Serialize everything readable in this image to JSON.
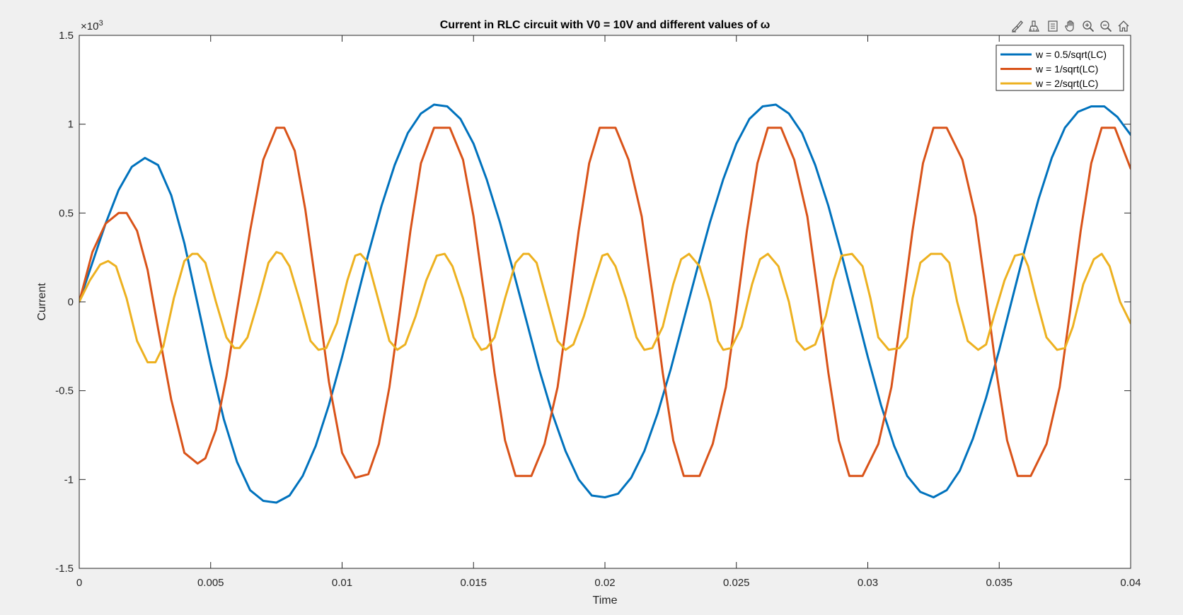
{
  "toolbar": {
    "icons": [
      "brush-icon",
      "data-tips-icon",
      "export-icon",
      "pan-hand-icon",
      "zoom-in-icon",
      "zoom-out-icon",
      "home-icon"
    ]
  },
  "colors": {
    "series1": "#0072BD",
    "series2": "#D95319",
    "series3": "#EDB120",
    "axes": "#262626",
    "plot_background": "#ffffff",
    "figure_background": "#f0f0f0"
  },
  "chart_data": {
    "type": "line",
    "title": "Current in RLC circuit with V0 = 10V and different values of ω",
    "xlabel": "Time",
    "ylabel": "Current",
    "y_exponent": "×10",
    "y_exponent_power": "-3",
    "xlim": [
      0,
      0.04
    ],
    "ylim": [
      -1.5,
      1.5
    ],
    "xticks": [
      0,
      0.005,
      0.01,
      0.015,
      0.02,
      0.025,
      0.03,
      0.035,
      0.04
    ],
    "xtick_labels": [
      "0",
      "0.005",
      "0.01",
      "0.015",
      "0.02",
      "0.025",
      "0.03",
      "0.035",
      "0.04"
    ],
    "yticks": [
      -1.5,
      -1,
      -0.5,
      0,
      0.5,
      1,
      1.5
    ],
    "ytick_labels": [
      "-1.5",
      "-1",
      "-0.5",
      "0",
      "0.5",
      "1",
      "1.5"
    ],
    "grid": false,
    "legend_position": "top-right",
    "series": [
      {
        "name": "w = 0.5/sqrt(LC)",
        "x": [
          0,
          0.0005,
          0.001,
          0.0015,
          0.002,
          0.0025,
          0.003,
          0.0035,
          0.004,
          0.0045,
          0.005,
          0.0055,
          0.006,
          0.0065,
          0.007,
          0.0075,
          0.008,
          0.0085,
          0.009,
          0.0095,
          0.01,
          0.0105,
          0.011,
          0.0115,
          0.012,
          0.0125,
          0.013,
          0.0135,
          0.014,
          0.0145,
          0.015,
          0.0155,
          0.016,
          0.0165,
          0.017,
          0.0175,
          0.018,
          0.0185,
          0.019,
          0.0195,
          0.02,
          0.0205,
          0.021,
          0.0215,
          0.022,
          0.0225,
          0.023,
          0.0235,
          0.024,
          0.0245,
          0.025,
          0.0255,
          0.026,
          0.0265,
          0.027,
          0.0275,
          0.028,
          0.0285,
          0.029,
          0.0295,
          0.03,
          0.0305,
          0.031,
          0.0315,
          0.032,
          0.0325,
          0.033,
          0.0335,
          0.034,
          0.0345,
          0.035,
          0.0355,
          0.036,
          0.0365,
          0.037,
          0.0375,
          0.038,
          0.0385,
          0.039,
          0.0395,
          0.04
        ],
        "y": [
          0,
          0.22,
          0.44,
          0.63,
          0.76,
          0.81,
          0.77,
          0.6,
          0.33,
          -0.01,
          -0.35,
          -0.66,
          -0.9,
          -1.06,
          -1.12,
          -1.13,
          -1.09,
          -0.98,
          -0.81,
          -0.58,
          -0.31,
          -0.02,
          0.27,
          0.54,
          0.77,
          0.95,
          1.06,
          1.11,
          1.1,
          1.03,
          0.89,
          0.69,
          0.45,
          0.18,
          -0.1,
          -0.38,
          -0.63,
          -0.84,
          -1.0,
          -1.09,
          -1.1,
          -1.08,
          -0.99,
          -0.84,
          -0.63,
          -0.38,
          -0.1,
          0.18,
          0.45,
          0.69,
          0.89,
          1.03,
          1.1,
          1.11,
          1.06,
          0.95,
          0.77,
          0.54,
          0.27,
          -0.02,
          -0.31,
          -0.58,
          -0.81,
          -0.98,
          -1.07,
          -1.1,
          -1.06,
          -0.95,
          -0.77,
          -0.54,
          -0.27,
          0.02,
          0.31,
          0.58,
          0.81,
          0.98,
          1.07,
          1.1,
          1.1,
          1.04,
          0.94
        ]
      },
      {
        "name": "w = 1/sqrt(LC)",
        "x": [
          0,
          0.0005,
          0.001,
          0.0015,
          0.0018,
          0.0022,
          0.0026,
          0.003,
          0.0035,
          0.004,
          0.0045,
          0.0048,
          0.0052,
          0.0056,
          0.006,
          0.0065,
          0.007,
          0.0075,
          0.0078,
          0.0082,
          0.0086,
          0.009,
          0.0095,
          0.01,
          0.0105,
          0.011,
          0.0114,
          0.0118,
          0.0122,
          0.0126,
          0.013,
          0.0135,
          0.0141,
          0.0146,
          0.015,
          0.0154,
          0.0158,
          0.0162,
          0.0166,
          0.0172,
          0.0177,
          0.0182,
          0.0186,
          0.019,
          0.0194,
          0.0198,
          0.0204,
          0.0209,
          0.0214,
          0.0218,
          0.0222,
          0.0226,
          0.023,
          0.0236,
          0.0241,
          0.0246,
          0.025,
          0.0254,
          0.0258,
          0.0262,
          0.0267,
          0.0272,
          0.0277,
          0.0281,
          0.0285,
          0.0289,
          0.0293,
          0.0298,
          0.0304,
          0.0309,
          0.0313,
          0.0317,
          0.0321,
          0.0325,
          0.033,
          0.0336,
          0.0341,
          0.0345,
          0.0349,
          0.0353,
          0.0357,
          0.0362,
          0.0368,
          0.0373,
          0.0377,
          0.0381,
          0.0385,
          0.0389,
          0.0394,
          0.04
        ],
        "y": [
          0,
          0.28,
          0.44,
          0.5,
          0.5,
          0.4,
          0.18,
          -0.15,
          -0.55,
          -0.85,
          -0.91,
          -0.88,
          -0.72,
          -0.42,
          -0.05,
          0.4,
          0.8,
          0.98,
          0.98,
          0.85,
          0.52,
          0.1,
          -0.45,
          -0.85,
          -0.99,
          -0.97,
          -0.8,
          -0.48,
          -0.05,
          0.4,
          0.78,
          0.98,
          0.98,
          0.8,
          0.48,
          0.05,
          -0.4,
          -0.78,
          -0.98,
          -0.98,
          -0.8,
          -0.48,
          -0.05,
          0.4,
          0.78,
          0.98,
          0.98,
          0.8,
          0.48,
          0.05,
          -0.4,
          -0.78,
          -0.98,
          -0.98,
          -0.8,
          -0.48,
          -0.05,
          0.4,
          0.78,
          0.98,
          0.98,
          0.8,
          0.48,
          0.05,
          -0.4,
          -0.78,
          -0.98,
          -0.98,
          -0.8,
          -0.48,
          -0.05,
          0.4,
          0.78,
          0.98,
          0.98,
          0.8,
          0.48,
          0.05,
          -0.4,
          -0.78,
          -0.98,
          -0.98,
          -0.8,
          -0.48,
          -0.05,
          0.4,
          0.78,
          0.98,
          0.98,
          0.75
        ]
      },
      {
        "name": "w = 2/sqrt(LC)",
        "x": [
          0,
          0.0004,
          0.0008,
          0.0011,
          0.0014,
          0.0018,
          0.0022,
          0.0026,
          0.0029,
          0.0032,
          0.0036,
          0.004,
          0.0043,
          0.0045,
          0.0048,
          0.0052,
          0.0056,
          0.0059,
          0.0061,
          0.0064,
          0.0068,
          0.0072,
          0.0075,
          0.0077,
          0.008,
          0.0084,
          0.0088,
          0.0091,
          0.0094,
          0.0098,
          0.0102,
          0.0105,
          0.0107,
          0.011,
          0.0114,
          0.0118,
          0.0121,
          0.0124,
          0.0128,
          0.0132,
          0.0136,
          0.0139,
          0.0142,
          0.0146,
          0.015,
          0.0153,
          0.0155,
          0.0158,
          0.0162,
          0.0166,
          0.0169,
          0.0171,
          0.0174,
          0.0178,
          0.0182,
          0.0185,
          0.0188,
          0.0192,
          0.0196,
          0.0199,
          0.0201,
          0.0204,
          0.0208,
          0.0212,
          0.0215,
          0.0218,
          0.0222,
          0.0226,
          0.0229,
          0.0232,
          0.0236,
          0.024,
          0.0243,
          0.0245,
          0.0248,
          0.0252,
          0.0256,
          0.0259,
          0.0262,
          0.0266,
          0.027,
          0.0273,
          0.0276,
          0.028,
          0.0284,
          0.0287,
          0.029,
          0.0294,
          0.0298,
          0.0301,
          0.0304,
          0.0308,
          0.0312,
          0.0315,
          0.0317,
          0.032,
          0.0324,
          0.0328,
          0.0331,
          0.0334,
          0.0338,
          0.0342,
          0.0345,
          0.0348,
          0.0352,
          0.0356,
          0.0359,
          0.0361,
          0.0364,
          0.0368,
          0.0372,
          0.0375,
          0.0378,
          0.0382,
          0.0386,
          0.0389,
          0.0392,
          0.0396,
          0.04
        ],
        "y": [
          0,
          0.12,
          0.21,
          0.23,
          0.2,
          0.02,
          -0.22,
          -0.34,
          -0.34,
          -0.25,
          0.02,
          0.23,
          0.27,
          0.27,
          0.22,
          0.0,
          -0.2,
          -0.26,
          -0.26,
          -0.2,
          0.0,
          0.22,
          0.28,
          0.27,
          0.2,
          0.0,
          -0.22,
          -0.27,
          -0.26,
          -0.12,
          0.12,
          0.26,
          0.27,
          0.22,
          0.0,
          -0.22,
          -0.27,
          -0.24,
          -0.08,
          0.12,
          0.26,
          0.27,
          0.2,
          0.02,
          -0.2,
          -0.27,
          -0.26,
          -0.2,
          0.02,
          0.22,
          0.27,
          0.27,
          0.22,
          0.0,
          -0.22,
          -0.27,
          -0.24,
          -0.08,
          0.12,
          0.26,
          0.27,
          0.2,
          0.02,
          -0.2,
          -0.27,
          -0.26,
          -0.14,
          0.1,
          0.24,
          0.27,
          0.2,
          0.0,
          -0.22,
          -0.27,
          -0.26,
          -0.14,
          0.1,
          0.24,
          0.27,
          0.2,
          0.0,
          -0.22,
          -0.27,
          -0.24,
          -0.08,
          0.12,
          0.26,
          0.27,
          0.2,
          0.02,
          -0.2,
          -0.27,
          -0.26,
          -0.2,
          0.02,
          0.22,
          0.27,
          0.27,
          0.22,
          0.0,
          -0.22,
          -0.27,
          -0.24,
          -0.08,
          0.12,
          0.26,
          0.27,
          0.2,
          0.02,
          -0.2,
          -0.27,
          -0.26,
          -0.14,
          0.1,
          0.24,
          0.27,
          0.2,
          0.0,
          -0.12
        ]
      }
    ]
  }
}
